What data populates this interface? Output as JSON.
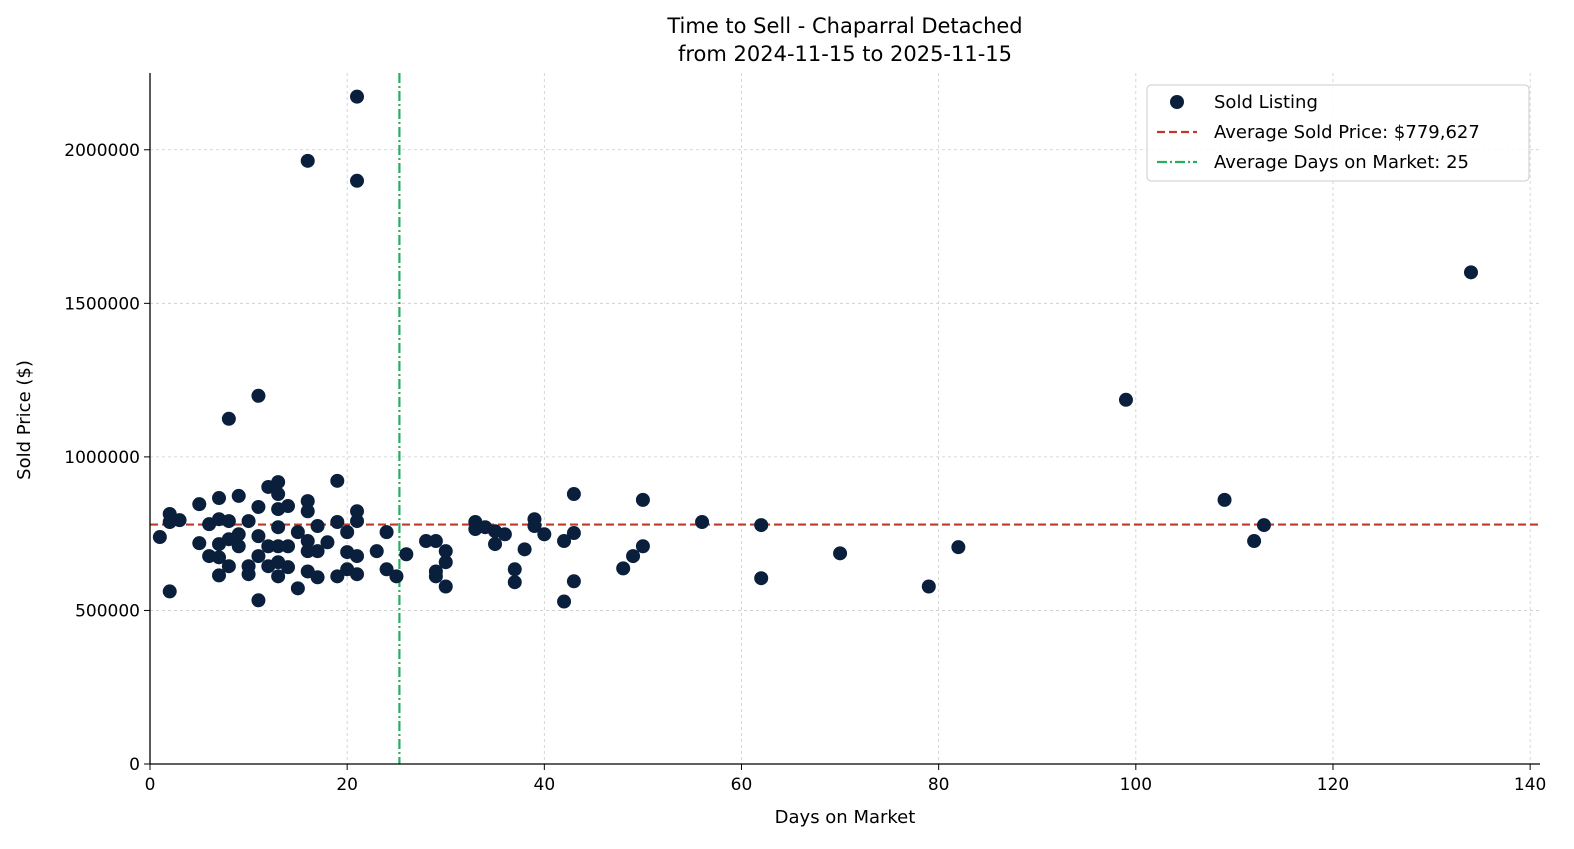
{
  "chart_data": {
    "type": "scatter",
    "title": "Time to Sell - Chaparral Detached",
    "subtitle": "from 2024-11-15 to 2025-11-15",
    "xlabel": "Days on Market",
    "ylabel": "Sold Price ($)",
    "xlim": [
      0,
      141
    ],
    "ylim": [
      0,
      2250000
    ],
    "xticks": [
      0,
      20,
      40,
      60,
      80,
      100,
      120,
      140
    ],
    "yticks": [
      0,
      500000,
      1000000,
      1500000,
      2000000
    ],
    "grid": true,
    "legend_position": "top-right",
    "colors": {
      "points": "#0a1f3c",
      "avg_price": "#c0392b",
      "avg_days": "#27ae60"
    },
    "series": [
      {
        "name": "Sold Listing",
        "points": [
          [
            1,
            739000
          ],
          [
            2,
            814000
          ],
          [
            2,
            788000
          ],
          [
            3,
            794000
          ],
          [
            2,
            562000
          ],
          [
            5,
            846000
          ],
          [
            5,
            719000
          ],
          [
            6,
            781000
          ],
          [
            6,
            677000
          ],
          [
            7,
            866000
          ],
          [
            7,
            797000
          ],
          [
            7,
            716000
          ],
          [
            7,
            673000
          ],
          [
            7,
            614000
          ],
          [
            8,
            791000
          ],
          [
            8,
            732000
          ],
          [
            8,
            644000
          ],
          [
            9,
            873000
          ],
          [
            9,
            748000
          ],
          [
            9,
            709000
          ],
          [
            10,
            791000
          ],
          [
            10,
            644000
          ],
          [
            10,
            618000
          ],
          [
            11,
            837000
          ],
          [
            11,
            742000
          ],
          [
            11,
            677000
          ],
          [
            11,
            533000
          ],
          [
            12,
            902000
          ],
          [
            12,
            709000
          ],
          [
            12,
            644000
          ],
          [
            13,
            918000
          ],
          [
            13,
            879000
          ],
          [
            13,
            830000
          ],
          [
            13,
            771000
          ],
          [
            13,
            709000
          ],
          [
            13,
            657000
          ],
          [
            13,
            611000
          ],
          [
            14,
            840000
          ],
          [
            14,
            709000
          ],
          [
            14,
            641000
          ],
          [
            15,
            755000
          ],
          [
            15,
            572000
          ],
          [
            16,
            856000
          ],
          [
            16,
            823000
          ],
          [
            16,
            726000
          ],
          [
            16,
            693000
          ],
          [
            16,
            627000
          ],
          [
            17,
            775000
          ],
          [
            17,
            693000
          ],
          [
            17,
            608000
          ],
          [
            18,
            722000
          ],
          [
            19,
            922000
          ],
          [
            19,
            788000
          ],
          [
            19,
            611000
          ],
          [
            20,
            755000
          ],
          [
            20,
            690000
          ],
          [
            20,
            634000
          ],
          [
            21,
            823000
          ],
          [
            21,
            791000
          ],
          [
            21,
            677000
          ],
          [
            21,
            618000
          ],
          [
            23,
            693000
          ],
          [
            24,
            755000
          ],
          [
            24,
            634000
          ],
          [
            25,
            611000
          ],
          [
            26,
            683000
          ],
          [
            28,
            726000
          ],
          [
            29,
            726000
          ],
          [
            29,
            627000
          ],
          [
            29,
            611000
          ],
          [
            30,
            693000
          ],
          [
            30,
            657000
          ],
          [
            30,
            578000
          ],
          [
            33,
            788000
          ],
          [
            33,
            765000
          ],
          [
            34,
            771000
          ],
          [
            35,
            758000
          ],
          [
            35,
            716000
          ],
          [
            36,
            748000
          ],
          [
            37,
            634000
          ],
          [
            37,
            592000
          ],
          [
            38,
            699000
          ],
          [
            39,
            797000
          ],
          [
            39,
            775000
          ],
          [
            40,
            748000
          ],
          [
            42,
            726000
          ],
          [
            42,
            529000
          ],
          [
            43,
            879000
          ],
          [
            43,
            752000
          ],
          [
            43,
            595000
          ],
          [
            48,
            637000
          ],
          [
            49,
            677000
          ],
          [
            50,
            709000
          ],
          [
            50,
            860000
          ],
          [
            21,
            2173000
          ],
          [
            16,
            1964000
          ],
          [
            21,
            1899000
          ],
          [
            11,
            1199000
          ],
          [
            8,
            1124000
          ],
          [
            56,
            788000
          ],
          [
            62,
            778000
          ],
          [
            62,
            605000
          ],
          [
            70,
            686000
          ],
          [
            79,
            578000
          ],
          [
            82,
            706000
          ],
          [
            99,
            1186000
          ],
          [
            109,
            860000
          ],
          [
            112,
            726000
          ],
          [
            113,
            778000
          ],
          [
            134,
            1601000
          ]
        ]
      }
    ],
    "reference_lines": [
      {
        "name": "Average Sold Price: $779,627",
        "orientation": "horizontal",
        "value": 779627,
        "style": "dashed"
      },
      {
        "name": "Average Days on Market: 25",
        "orientation": "vertical",
        "value": 25.3,
        "style": "dashdot"
      }
    ]
  }
}
